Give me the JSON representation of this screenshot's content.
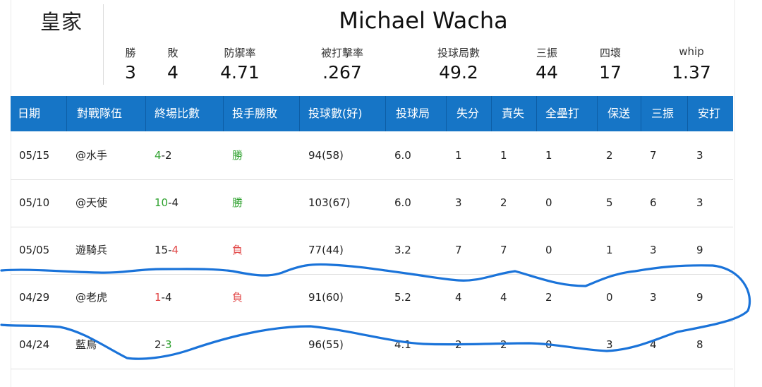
{
  "team": "皇家",
  "player": "Michael Wacha",
  "stats": [
    {
      "label": "勝",
      "value": "3"
    },
    {
      "label": "敗",
      "value": "4"
    },
    {
      "label": "防禦率",
      "value": "4.71"
    },
    {
      "label": "被打擊率",
      "value": ".267"
    },
    {
      "label": "投球局數",
      "value": "49.2"
    },
    {
      "label": "三振",
      "value": "44"
    },
    {
      "label": "四壞",
      "value": "17"
    },
    {
      "label": "whip",
      "value": "1.37"
    }
  ],
  "columns": [
    "日期",
    "對戰隊伍",
    "終場比數",
    "投手勝敗",
    "投球數(好)",
    "投球局",
    "失分",
    "責失",
    "全壘打",
    "保送",
    "三振",
    "安打"
  ],
  "rows": [
    {
      "date": "05/15",
      "opp": "@水手",
      "score_a": "4",
      "score_b": "2",
      "score_a_color": "green",
      "score_b_color": "dark",
      "decision": "勝",
      "decision_color": "green",
      "pitches": "94(58)",
      "ip": "6.0",
      "r": "1",
      "er": "1",
      "hr": "1",
      "bb": "2",
      "so": "7",
      "h": "3"
    },
    {
      "date": "05/10",
      "opp": "@天使",
      "score_a": "10",
      "score_b": "4",
      "score_a_color": "green",
      "score_b_color": "dark",
      "decision": "勝",
      "decision_color": "green",
      "pitches": "103(67)",
      "ip": "6.0",
      "r": "3",
      "er": "2",
      "hr": "0",
      "bb": "5",
      "so": "6",
      "h": "3"
    },
    {
      "date": "05/05",
      "opp": "遊騎兵",
      "score_a": "15",
      "score_b": "4",
      "score_a_color": "dark",
      "score_b_color": "red",
      "decision": "負",
      "decision_color": "red",
      "pitches": "77(44)",
      "ip": "3.2",
      "r": "7",
      "er": "7",
      "hr": "0",
      "bb": "1",
      "so": "3",
      "h": "9"
    },
    {
      "date": "04/29",
      "opp": "@老虎",
      "score_a": "1",
      "score_b": "4",
      "score_a_color": "red",
      "score_b_color": "dark",
      "decision": "負",
      "decision_color": "red",
      "pitches": "91(60)",
      "ip": "5.2",
      "r": "4",
      "er": "4",
      "hr": "2",
      "bb": "0",
      "so": "3",
      "h": "9"
    },
    {
      "date": "04/24",
      "opp": "藍鳥",
      "score_a": "2",
      "score_b": "3",
      "score_a_color": "dark",
      "score_b_color": "green",
      "decision": "",
      "decision_color": "dark",
      "pitches": "96(55)",
      "ip": "4.1",
      "r": "2",
      "er": "2",
      "hr": "0",
      "bb": "3",
      "so": "4",
      "h": "8"
    }
  ],
  "colors": {
    "header_bg": "#1675c6",
    "green": "#2ea12e",
    "red": "#e24a4a",
    "ink": "#1a73d9"
  }
}
